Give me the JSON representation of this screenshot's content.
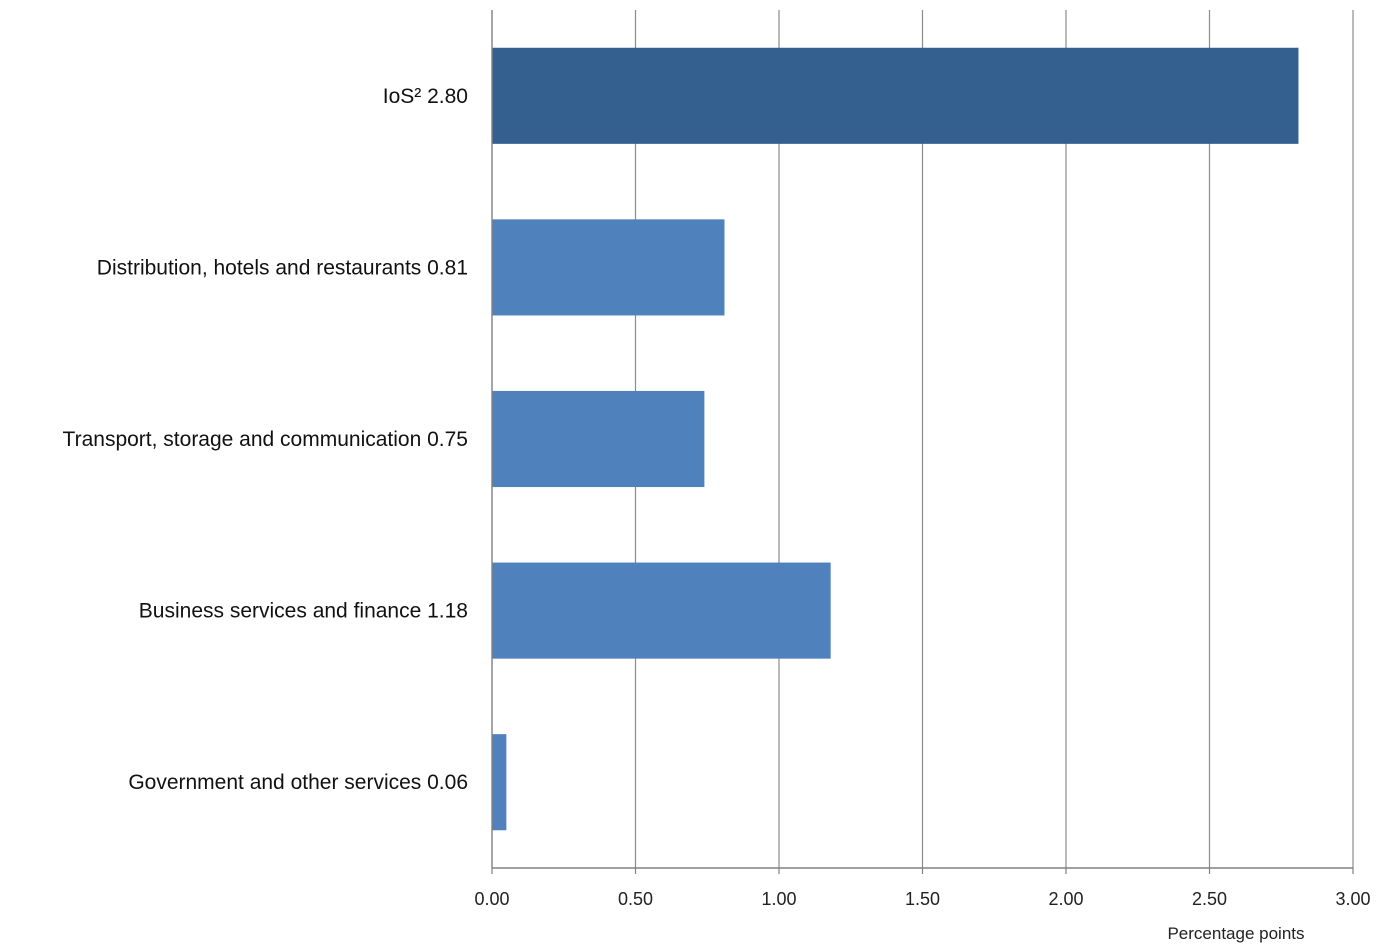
{
  "chart_data": {
    "type": "bar",
    "orientation": "horizontal",
    "categories": [
      "IoS² 2.80",
      "Distribution, hotels and restaurants 0.81",
      "Transport, storage and communication 0.75",
      "Business services and finance 1.18",
      "Government and other services 0.06"
    ],
    "values": [
      2.81,
      0.81,
      0.74,
      1.18,
      0.05
    ],
    "xlabel": "Percentage points",
    "xlim": [
      0,
      3
    ],
    "xticks": [
      "0.00",
      "0.50",
      "1.00",
      "1.50",
      "2.00",
      "2.50",
      "3.00"
    ],
    "grid": "vertical",
    "colors": {
      "highlight": "#34608f",
      "bar": "#4f81bd",
      "grid": "#8c8c8c",
      "axis": "#808080"
    }
  }
}
